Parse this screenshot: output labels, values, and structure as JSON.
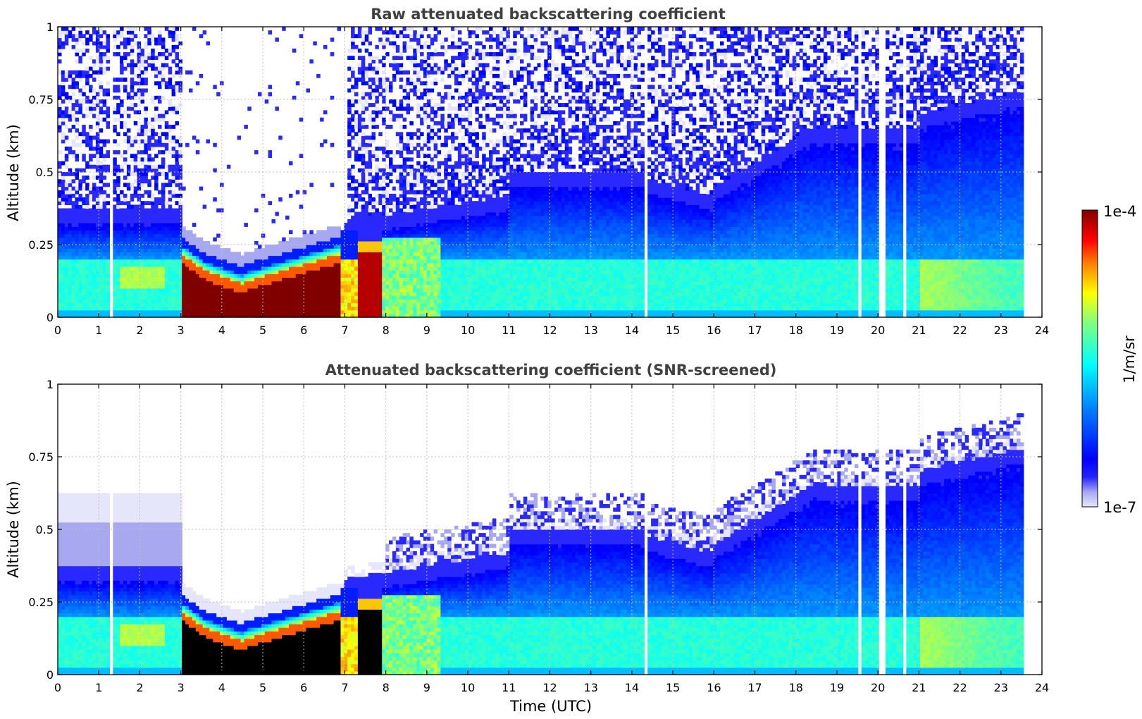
{
  "chart_data": [
    {
      "type": "heatmap",
      "title": "Raw attenuated backscattering coefficient",
      "xlabel": "",
      "ylabel": "Altitude (km)",
      "xlim": [
        0,
        24
      ],
      "ylim": [
        0,
        1
      ],
      "x_ticks": [
        "0",
        "1",
        "2",
        "3",
        "4",
        "5",
        "6",
        "7",
        "8",
        "9",
        "10",
        "11",
        "12",
        "13",
        "14",
        "15",
        "16",
        "17",
        "18",
        "19",
        "20",
        "21",
        "22",
        "23",
        "24"
      ],
      "y_ticks": [
        "0",
        "0.25",
        "0.5",
        "0.75",
        "1"
      ],
      "data_end_hour": 23.55,
      "colorscale": "jet (log)",
      "grid": true,
      "screened": false
    },
    {
      "type": "heatmap",
      "title": "Attenuated backscattering coefficient (SNR-screened)",
      "xlabel": "Time (UTC)",
      "ylabel": "Altitude (km)",
      "xlim": [
        0,
        24
      ],
      "ylim": [
        0,
        1
      ],
      "x_ticks": [
        "0",
        "1",
        "2",
        "3",
        "4",
        "5",
        "6",
        "7",
        "8",
        "9",
        "10",
        "11",
        "12",
        "13",
        "14",
        "15",
        "16",
        "17",
        "18",
        "19",
        "20",
        "21",
        "22",
        "23",
        "24"
      ],
      "y_ticks": [
        "0",
        "0.25",
        "0.5",
        "0.75",
        "1"
      ],
      "data_end_hour": 23.55,
      "colorscale": "jet (log)",
      "grid": true,
      "screened": true
    }
  ],
  "colorbar": {
    "label": "1/m/sr",
    "max_label": "1e-4",
    "min_label": "1e-7",
    "range": [
      1e-07,
      0.0001
    ],
    "scale": "log"
  },
  "colors": {
    "jet_dark_red": "#800000",
    "jet_red": "#ff0000",
    "jet_yellow": "#ffff00",
    "jet_cyan": "#00ffff",
    "jet_blue": "#0000ff",
    "low_end": "#e6e6fa",
    "saturated_screened": "#000000"
  }
}
